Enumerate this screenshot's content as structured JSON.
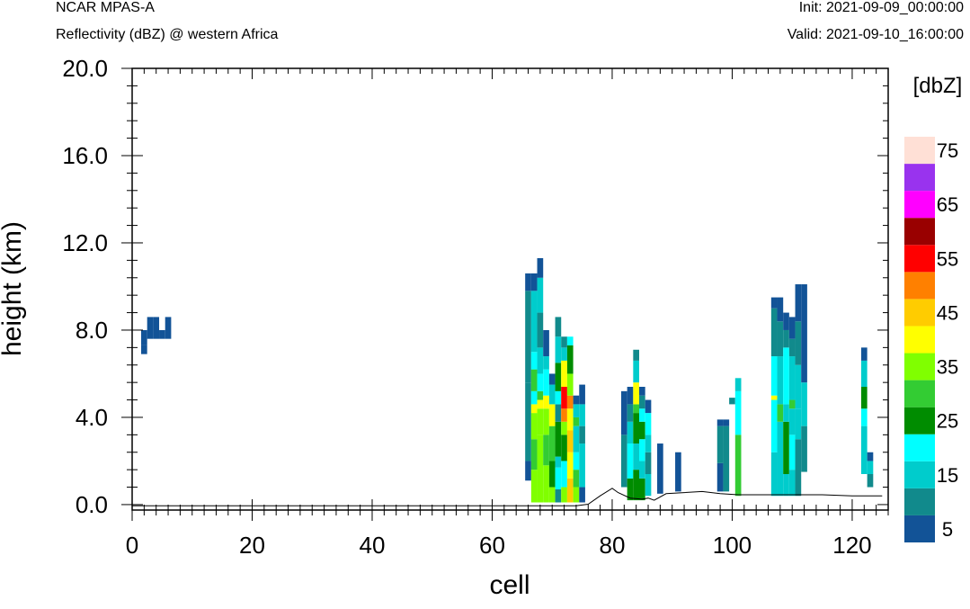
{
  "header": {
    "model": "NCAR MPAS-A",
    "field": "Reflectivity (dBZ) @ western Africa",
    "init": "Init: 2021-09-09_00:00:00",
    "valid": "Valid: 2021-09-10_16:00:00"
  },
  "colors": {
    "bins": [
      "#125397",
      "#118a8c",
      "#00cccc",
      "#00ffff",
      "#008c00",
      "#33cc33",
      "#80ff00",
      "#ffff00",
      "#ffcc00",
      "#ff8000",
      "#ff0000",
      "#990000",
      "#ff00ff",
      "#9933ee",
      "#ffe0d6"
    ]
  },
  "chart_data": {
    "type": "heatmap",
    "title": "",
    "xlabel": "cell",
    "ylabel": "height (km)",
    "xlim": [
      0,
      126
    ],
    "ylim": [
      -0.25,
      20.0
    ],
    "xticks": [
      "0",
      "20",
      "40",
      "60",
      "80",
      "100",
      "120"
    ],
    "yticks": [
      "0.0",
      "4.0",
      "8.0",
      "12.0",
      "16.0",
      "20.0"
    ],
    "colorbar": {
      "label": "[dbZ]",
      "labels": [
        "5",
        "15",
        "25",
        "35",
        "45",
        "55",
        "65",
        "75"
      ],
      "bins_dbz": [
        5,
        10,
        15,
        20,
        25,
        30,
        35,
        40,
        45,
        50,
        55,
        60,
        65,
        70,
        75
      ]
    },
    "terrain_km": [
      [
        0,
        -0.05
      ],
      [
        66,
        -0.05
      ],
      [
        74,
        -0.05
      ],
      [
        76,
        0.02
      ],
      [
        78,
        0.4
      ],
      [
        80,
        0.75
      ],
      [
        81,
        0.55
      ],
      [
        83,
        0.3
      ],
      [
        85,
        0.25
      ],
      [
        86,
        0.3
      ],
      [
        87,
        0.2
      ],
      [
        89,
        0.5
      ],
      [
        92,
        0.55
      ],
      [
        95,
        0.6
      ],
      [
        98,
        0.5
      ],
      [
        101,
        0.45
      ],
      [
        105,
        0.45
      ],
      [
        110,
        0.45
      ],
      [
        115,
        0.45
      ],
      [
        120,
        0.4
      ],
      [
        125,
        0.4
      ]
    ],
    "columns": [
      {
        "cell": 2,
        "bins": [
          [
            6.9,
            7.3,
            5
          ],
          [
            7.3,
            8.0,
            5
          ]
        ]
      },
      {
        "cell": 3,
        "bins": [
          [
            7.6,
            8.6,
            5
          ]
        ]
      },
      {
        "cell": 4,
        "bins": [
          [
            7.6,
            8.6,
            5
          ]
        ]
      },
      {
        "cell": 5,
        "bins": [
          [
            7.6,
            8.0,
            5
          ]
        ]
      },
      {
        "cell": 6,
        "bins": [
          [
            7.6,
            8.6,
            5
          ]
        ]
      },
      {
        "cell": 66,
        "bins": [
          [
            1.1,
            2.0,
            5
          ],
          [
            2.0,
            5.6,
            10
          ],
          [
            5.6,
            9.8,
            10
          ],
          [
            9.8,
            10.6,
            5
          ]
        ]
      },
      {
        "cell": 67,
        "bins": [
          [
            0.1,
            1.6,
            35
          ],
          [
            1.6,
            3.0,
            30
          ],
          [
            3.0,
            4.2,
            35
          ],
          [
            4.2,
            4.6,
            40
          ],
          [
            4.6,
            5.2,
            20
          ],
          [
            5.2,
            6.2,
            30
          ],
          [
            6.2,
            7.0,
            20
          ],
          [
            7.0,
            9.8,
            15
          ],
          [
            9.8,
            10.6,
            5
          ]
        ]
      },
      {
        "cell": 68,
        "bins": [
          [
            0.1,
            3.2,
            35
          ],
          [
            3.2,
            4.4,
            35
          ],
          [
            4.4,
            4.8,
            40
          ],
          [
            4.8,
            5.2,
            30
          ],
          [
            5.2,
            6.0,
            20
          ],
          [
            6.0,
            7.2,
            15
          ],
          [
            7.2,
            8.8,
            10
          ],
          [
            8.8,
            10.4,
            15
          ],
          [
            10.4,
            11.3,
            5
          ]
        ]
      },
      {
        "cell": 69,
        "bins": [
          [
            0.1,
            1.8,
            35
          ],
          [
            1.8,
            3.2,
            30
          ],
          [
            3.2,
            4.4,
            35
          ],
          [
            4.4,
            5.0,
            40
          ],
          [
            5.0,
            6.2,
            20
          ],
          [
            6.2,
            6.8,
            15
          ],
          [
            6.8,
            8.0,
            5
          ]
        ]
      },
      {
        "cell": 70,
        "bins": [
          [
            0.1,
            0.8,
            35
          ],
          [
            0.8,
            2.0,
            25
          ],
          [
            2.0,
            3.6,
            30
          ],
          [
            3.6,
            4.6,
            40
          ],
          [
            4.6,
            5.5,
            15
          ],
          [
            5.5,
            6.0,
            5
          ]
        ]
      },
      {
        "cell": 71,
        "bins": [
          [
            0.1,
            0.7,
            10
          ],
          [
            0.7,
            1.7,
            20
          ],
          [
            1.7,
            2.2,
            15
          ],
          [
            2.2,
            3.8,
            25
          ],
          [
            3.8,
            4.6,
            10
          ],
          [
            4.6,
            5.2,
            20
          ],
          [
            5.2,
            6.5,
            25
          ],
          [
            6.5,
            7.7,
            15
          ],
          [
            7.7,
            8.6,
            10
          ]
        ]
      },
      {
        "cell": 72,
        "bins": [
          [
            0.1,
            0.8,
            35
          ],
          [
            0.8,
            2.0,
            20
          ],
          [
            2.0,
            3.2,
            25
          ],
          [
            3.2,
            3.8,
            35
          ],
          [
            3.8,
            4.4,
            50
          ],
          [
            4.4,
            5.4,
            55
          ],
          [
            5.4,
            6.6,
            40
          ],
          [
            6.6,
            7.2,
            15
          ],
          [
            7.2,
            7.7,
            10
          ]
        ]
      },
      {
        "cell": 73,
        "bins": [
          [
            0.1,
            1.2,
            45
          ],
          [
            1.2,
            2.4,
            40
          ],
          [
            2.4,
            3.4,
            45
          ],
          [
            3.4,
            4.4,
            40
          ],
          [
            4.4,
            5.0,
            50
          ],
          [
            5.0,
            6.0,
            35
          ],
          [
            6.0,
            7.3,
            25
          ],
          [
            7.3,
            7.7,
            20
          ]
        ]
      },
      {
        "cell": 74,
        "bins": [
          [
            0.1,
            0.8,
            35
          ],
          [
            0.8,
            1.6,
            30
          ],
          [
            1.6,
            2.4,
            20
          ],
          [
            2.4,
            3.6,
            15
          ],
          [
            3.6,
            4.0,
            30
          ],
          [
            4.0,
            4.6,
            15
          ],
          [
            4.6,
            5.0,
            5
          ]
        ]
      },
      {
        "cell": 75,
        "bins": [
          [
            0.1,
            0.8,
            5
          ],
          [
            0.8,
            2.8,
            15
          ],
          [
            2.8,
            3.6,
            10
          ],
          [
            3.6,
            4.6,
            15
          ],
          [
            4.6,
            5.5,
            5
          ]
        ]
      },
      {
        "cell": 82,
        "bins": [
          [
            0.8,
            3.2,
            10
          ],
          [
            3.2,
            5.2,
            5
          ]
        ]
      },
      {
        "cell": 83,
        "bins": [
          [
            0.2,
            1.2,
            25
          ],
          [
            1.2,
            2.8,
            20
          ],
          [
            2.8,
            3.8,
            15
          ],
          [
            3.8,
            4.6,
            10
          ],
          [
            4.6,
            5.4,
            5
          ]
        ]
      },
      {
        "cell": 84,
        "bins": [
          [
            0.2,
            1.6,
            25
          ],
          [
            1.6,
            2.8,
            15
          ],
          [
            2.8,
            4.2,
            25
          ],
          [
            4.2,
            4.6,
            30
          ],
          [
            4.6,
            5.6,
            40
          ],
          [
            5.6,
            6.6,
            15
          ],
          [
            6.6,
            7.1,
            10
          ]
        ]
      },
      {
        "cell": 85,
        "bins": [
          [
            0.2,
            1.2,
            25
          ],
          [
            1.2,
            2.0,
            15
          ],
          [
            2.0,
            3.0,
            20
          ],
          [
            3.0,
            3.8,
            25
          ],
          [
            3.8,
            4.4,
            20
          ],
          [
            4.4,
            5.0,
            10
          ],
          [
            5.0,
            5.4,
            5
          ]
        ]
      },
      {
        "cell": 86,
        "bins": [
          [
            0.4,
            1.4,
            15
          ],
          [
            1.4,
            2.4,
            10
          ],
          [
            2.4,
            3.2,
            15
          ],
          [
            3.2,
            4.2,
            20
          ],
          [
            4.2,
            4.8,
            5
          ]
        ]
      },
      {
        "cell": 88,
        "bins": [
          [
            0.5,
            2.8,
            5
          ]
        ]
      },
      {
        "cell": 91,
        "bins": [
          [
            0.6,
            2.4,
            5
          ]
        ]
      },
      {
        "cell": 98,
        "bins": [
          [
            0.6,
            1.9,
            5
          ],
          [
            1.9,
            3.6,
            10
          ],
          [
            3.6,
            3.9,
            5
          ]
        ]
      },
      {
        "cell": 99,
        "bins": [
          [
            0.6,
            3.6,
            10
          ],
          [
            3.6,
            3.9,
            5
          ]
        ]
      },
      {
        "cell": 100,
        "bins": [
          [
            4.6,
            4.9,
            10
          ]
        ]
      },
      {
        "cell": 101,
        "bins": [
          [
            0.4,
            3.2,
            30
          ],
          [
            3.2,
            5.2,
            20
          ],
          [
            5.2,
            5.8,
            15
          ]
        ]
      },
      {
        "cell": 107,
        "bins": [
          [
            0.4,
            2.4,
            15
          ],
          [
            2.4,
            4.8,
            20
          ],
          [
            4.8,
            5.0,
            40
          ],
          [
            5.0,
            6.8,
            20
          ],
          [
            6.8,
            9.0,
            10
          ],
          [
            9.0,
            9.5,
            5
          ]
        ]
      },
      {
        "cell": 108,
        "bins": [
          [
            0.4,
            3.8,
            15
          ],
          [
            3.8,
            4.6,
            30
          ],
          [
            4.6,
            6.8,
            15
          ],
          [
            6.8,
            8.4,
            10
          ],
          [
            8.4,
            9.5,
            5
          ]
        ]
      },
      {
        "cell": 109,
        "bins": [
          [
            0.4,
            1.4,
            15
          ],
          [
            1.4,
            3.8,
            25
          ],
          [
            3.8,
            4.6,
            15
          ],
          [
            4.6,
            7.2,
            20
          ],
          [
            7.2,
            8.0,
            10
          ],
          [
            8.0,
            8.8,
            5
          ]
        ]
      },
      {
        "cell": 110,
        "bins": [
          [
            0.4,
            1.6,
            15
          ],
          [
            1.6,
            3.2,
            20
          ],
          [
            3.2,
            4.4,
            15
          ],
          [
            4.4,
            4.8,
            30
          ],
          [
            4.8,
            6.8,
            15
          ],
          [
            6.8,
            7.6,
            10
          ],
          [
            7.6,
            8.6,
            5
          ]
        ]
      },
      {
        "cell": 111,
        "bins": [
          [
            0.4,
            3.0,
            10
          ],
          [
            3.0,
            4.4,
            15
          ],
          [
            4.4,
            6.4,
            15
          ],
          [
            6.4,
            8.4,
            10
          ],
          [
            8.4,
            10.1,
            5
          ]
        ]
      },
      {
        "cell": 112,
        "bins": [
          [
            1.5,
            3.6,
            10
          ],
          [
            3.6,
            5.6,
            15
          ],
          [
            5.6,
            10.1,
            5
          ]
        ]
      },
      {
        "cell": 122,
        "bins": [
          [
            1.4,
            3.6,
            15
          ],
          [
            3.6,
            4.4,
            20
          ],
          [
            4.4,
            5.4,
            25
          ],
          [
            5.4,
            6.6,
            15
          ],
          [
            6.6,
            7.2,
            5
          ]
        ]
      },
      {
        "cell": 123,
        "bins": [
          [
            0.8,
            1.4,
            10
          ],
          [
            1.4,
            2.0,
            15
          ],
          [
            2.0,
            2.4,
            5
          ]
        ]
      }
    ]
  }
}
